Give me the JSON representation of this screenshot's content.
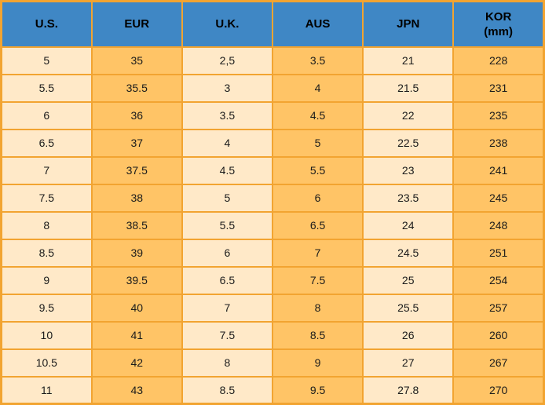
{
  "colors": {
    "header_bg": "#3f87c5",
    "cream": "#ffe9c8",
    "orange": "#ffc466",
    "grid": "#f2a431",
    "header_text": "#000000",
    "body_text": "#1b1b1b"
  },
  "table": {
    "columns": [
      {
        "label": "U.S.",
        "sublabel": ""
      },
      {
        "label": "EUR",
        "sublabel": ""
      },
      {
        "label": "U.K.",
        "sublabel": ""
      },
      {
        "label": "AUS",
        "sublabel": ""
      },
      {
        "label": "JPN",
        "sublabel": ""
      },
      {
        "label": "KOR",
        "sublabel": "(mm)"
      }
    ],
    "rows": [
      [
        "5",
        "35",
        "2,5",
        "3.5",
        "21",
        "228"
      ],
      [
        "5.5",
        "35.5",
        "3",
        "4",
        "21.5",
        "231"
      ],
      [
        "6",
        "36",
        "3.5",
        "4.5",
        "22",
        "235"
      ],
      [
        "6.5",
        "37",
        "4",
        "5",
        "22.5",
        "238"
      ],
      [
        "7",
        "37.5",
        "4.5",
        "5.5",
        "23",
        "241"
      ],
      [
        "7.5",
        "38",
        "5",
        "6",
        "23.5",
        "245"
      ],
      [
        "8",
        "38.5",
        "5.5",
        "6.5",
        "24",
        "248"
      ],
      [
        "8.5",
        "39",
        "6",
        "7",
        "24.5",
        "251"
      ],
      [
        "9",
        "39.5",
        "6.5",
        "7.5",
        "25",
        "254"
      ],
      [
        "9.5",
        "40",
        "7",
        "8",
        "25.5",
        "257"
      ],
      [
        "10",
        "41",
        "7.5",
        "8.5",
        "26",
        "260"
      ],
      [
        "10.5",
        "42",
        "8",
        "9",
        "27",
        "267"
      ],
      [
        "11",
        "43",
        "8.5",
        "9.5",
        "27.8",
        "270"
      ]
    ]
  },
  "chart_data": {
    "type": "table",
    "title": "Shoe size conversion table",
    "columns": [
      "U.S.",
      "EUR",
      "U.K.",
      "AUS",
      "JPN",
      "KOR (mm)"
    ],
    "rows": [
      [
        "5",
        "35",
        "2,5",
        "3.5",
        "21",
        "228"
      ],
      [
        "5.5",
        "35.5",
        "3",
        "4",
        "21.5",
        "231"
      ],
      [
        "6",
        "36",
        "3.5",
        "4.5",
        "22",
        "235"
      ],
      [
        "6.5",
        "37",
        "4",
        "5",
        "22.5",
        "238"
      ],
      [
        "7",
        "37.5",
        "4.5",
        "5.5",
        "23",
        "241"
      ],
      [
        "7.5",
        "38",
        "5",
        "6",
        "23.5",
        "245"
      ],
      [
        "8",
        "38.5",
        "5.5",
        "6.5",
        "24",
        "248"
      ],
      [
        "8.5",
        "39",
        "6",
        "7",
        "24.5",
        "251"
      ],
      [
        "9",
        "39.5",
        "6.5",
        "7.5",
        "25",
        "254"
      ],
      [
        "9.5",
        "40",
        "7",
        "8",
        "25.5",
        "257"
      ],
      [
        "10",
        "41",
        "7.5",
        "8.5",
        "26",
        "260"
      ],
      [
        "10.5",
        "42",
        "8",
        "9",
        "27",
        "267"
      ],
      [
        "11",
        "43",
        "8.5",
        "9.5",
        "27.8",
        "270"
      ]
    ]
  }
}
